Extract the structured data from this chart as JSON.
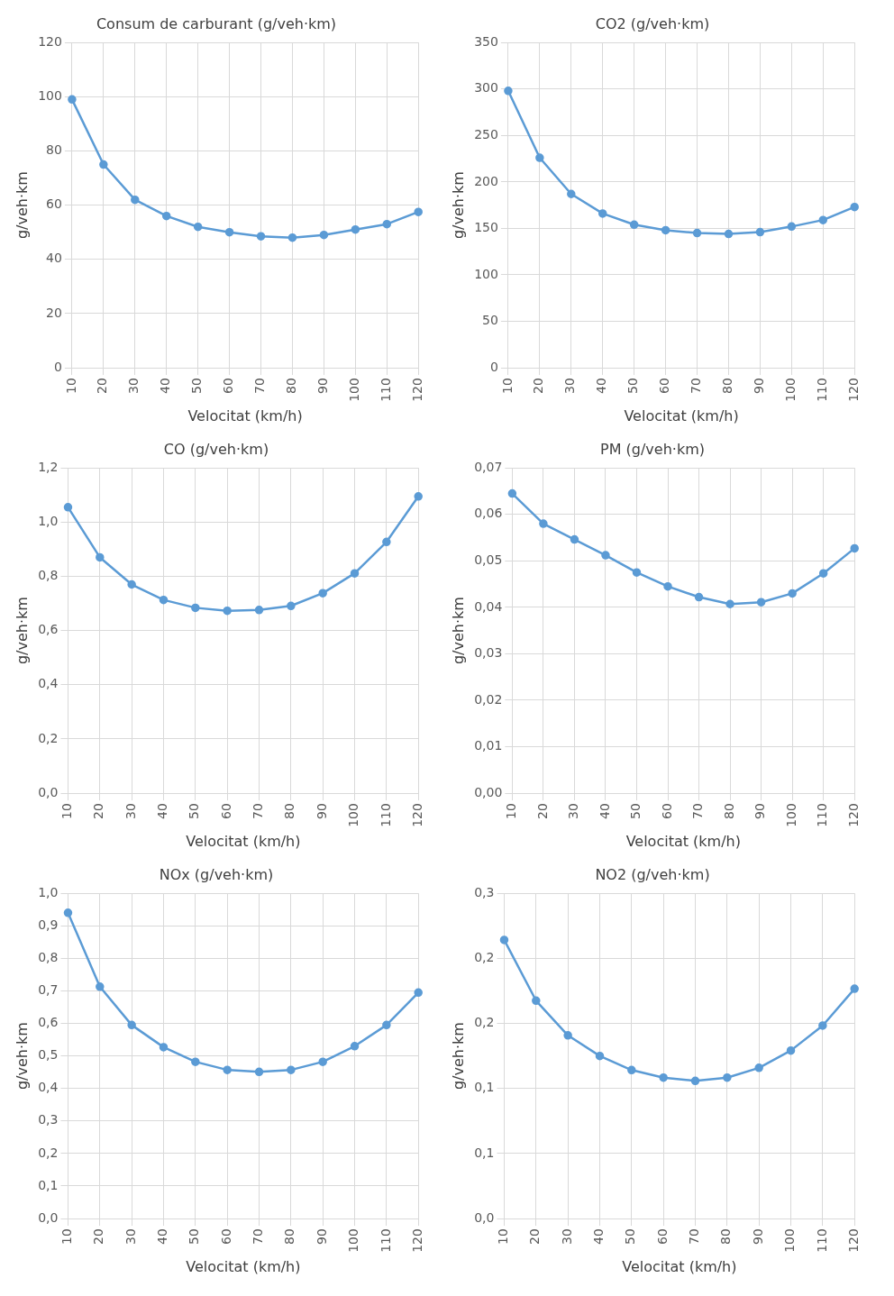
{
  "chart_data": [
    {
      "type": "line",
      "title": "Consum de carburant (g/veh·km)",
      "xlabel": "Velocitat (km/h)",
      "ylabel": "g/veh·km",
      "categories": [
        "10",
        "20",
        "30",
        "40",
        "50",
        "60",
        "70",
        "80",
        "90",
        "100",
        "110",
        "120"
      ],
      "values": [
        99,
        75,
        62,
        56,
        52,
        50,
        48.5,
        48,
        49,
        51,
        53,
        57.5
      ],
      "color": "#5b9bd5",
      "ylim": [
        0,
        120
      ],
      "yticks": [
        0,
        20,
        40,
        60,
        80,
        100,
        120
      ],
      "grid": true,
      "marker": "circle",
      "legend": false
    },
    {
      "type": "line",
      "title": "CO2 (g/veh·km)",
      "xlabel": "Velocitat (km/h)",
      "ylabel": "g/veh·km",
      "categories": [
        "10",
        "20",
        "30",
        "40",
        "50",
        "60",
        "70",
        "80",
        "90",
        "100",
        "110",
        "120"
      ],
      "values": [
        298,
        226,
        187,
        166,
        154,
        148,
        145,
        144,
        146,
        152,
        159,
        173
      ],
      "color": "#5b9bd5",
      "ylim": [
        0,
        350
      ],
      "yticks": [
        0,
        50,
        100,
        150,
        200,
        250,
        300,
        350
      ],
      "grid": true,
      "marker": "circle",
      "legend": false
    },
    {
      "type": "line",
      "title": "CO (g/veh·km)",
      "xlabel": "Velocitat (km/h)",
      "ylabel": "g/veh·km",
      "categories": [
        "10",
        "20",
        "30",
        "40",
        "50",
        "60",
        "70",
        "80",
        "90",
        "100",
        "110",
        "120"
      ],
      "values": [
        1.055,
        0.87,
        0.77,
        0.713,
        0.684,
        0.673,
        0.676,
        0.691,
        0.738,
        0.811,
        0.927,
        1.095
      ],
      "color": "#5b9bd5",
      "ylim": [
        0,
        1.2
      ],
      "yticks": [
        {
          "value": 0,
          "label": "0,0"
        },
        {
          "value": 0.2,
          "label": "0,2"
        },
        {
          "value": 0.4,
          "label": "0,4"
        },
        {
          "value": 0.6,
          "label": "0,6"
        },
        {
          "value": 0.8,
          "label": "0,8"
        },
        {
          "value": 1,
          "label": "1,0"
        },
        {
          "value": 1.2,
          "label": "1,2"
        }
      ],
      "grid": true,
      "marker": "circle",
      "legend": false
    },
    {
      "type": "line",
      "title": "PM (g/veh·km)",
      "xlabel": "Velocitat (km/h)",
      "ylabel": "g/veh·km",
      "categories": [
        "10",
        "20",
        "30",
        "40",
        "50",
        "60",
        "70",
        "80",
        "90",
        "100",
        "110",
        "120"
      ],
      "values": [
        0.0645,
        0.058,
        0.0546,
        0.0512,
        0.0475,
        0.0445,
        0.0422,
        0.0407,
        0.0411,
        0.043,
        0.0473,
        0.0527
      ],
      "color": "#5b9bd5",
      "ylim": [
        0,
        0.07
      ],
      "yticks": [
        {
          "value": 0,
          "label": "0,00"
        },
        {
          "value": 0.01,
          "label": "0,01"
        },
        {
          "value": 0.02,
          "label": "0,02"
        },
        {
          "value": 0.03,
          "label": "0,03"
        },
        {
          "value": 0.04,
          "label": "0,04"
        },
        {
          "value": 0.05,
          "label": "0,05"
        },
        {
          "value": 0.06,
          "label": "0,06"
        },
        {
          "value": 0.07,
          "label": "0,07"
        }
      ],
      "grid": true,
      "marker": "circle",
      "legend": false
    },
    {
      "type": "line",
      "title": "NOx (g/veh·km)",
      "xlabel": "Velocitat (km/h)",
      "ylabel": "g/veh·km",
      "categories": [
        "10",
        "20",
        "30",
        "40",
        "50",
        "60",
        "70",
        "80",
        "90",
        "100",
        "110",
        "120"
      ],
      "values": [
        0.94,
        0.713,
        0.595,
        0.527,
        0.482,
        0.457,
        0.451,
        0.457,
        0.482,
        0.53,
        0.595,
        0.695
      ],
      "color": "#5b9bd5",
      "ylim": [
        0,
        1
      ],
      "yticks": [
        {
          "value": 0,
          "label": "0,0"
        },
        {
          "value": 0.1,
          "label": "0,1"
        },
        {
          "value": 0.2,
          "label": "0,2"
        },
        {
          "value": 0.3,
          "label": "0,3"
        },
        {
          "value": 0.4,
          "label": "0,4"
        },
        {
          "value": 0.5,
          "label": "0,5"
        },
        {
          "value": 0.6,
          "label": "0,6"
        },
        {
          "value": 0.7,
          "label": "0,7"
        },
        {
          "value": 0.8,
          "label": "0,8"
        },
        {
          "value": 0.9,
          "label": "0,9"
        },
        {
          "value": 1,
          "label": "1,0"
        }
      ],
      "grid": true,
      "marker": "circle",
      "legend": false
    },
    {
      "type": "line",
      "title": "NO2 (g/veh·km)",
      "xlabel": "Velocitat (km/h)",
      "ylabel": "g/veh·km",
      "categories": [
        "10",
        "20",
        "30",
        "40",
        "50",
        "60",
        "70",
        "80",
        "90",
        "100",
        "110",
        "120"
      ],
      "values": [
        0.257,
        0.201,
        0.169,
        0.15,
        0.137,
        0.13,
        0.127,
        0.13,
        0.139,
        0.155,
        0.178,
        0.212
      ],
      "color": "#5b9bd5",
      "ylim": [
        0,
        0.3
      ],
      "yticks": [
        {
          "value": 0,
          "label": "0,0"
        },
        {
          "value": 0.06,
          "label": "0,1"
        },
        {
          "value": 0.12,
          "label": "0,1"
        },
        {
          "value": 0.18,
          "label": "0,2"
        },
        {
          "value": 0.24,
          "label": "0,2"
        },
        {
          "value": 0.3,
          "label": "0,3"
        }
      ],
      "grid": true,
      "marker": "circle",
      "legend": false
    }
  ]
}
